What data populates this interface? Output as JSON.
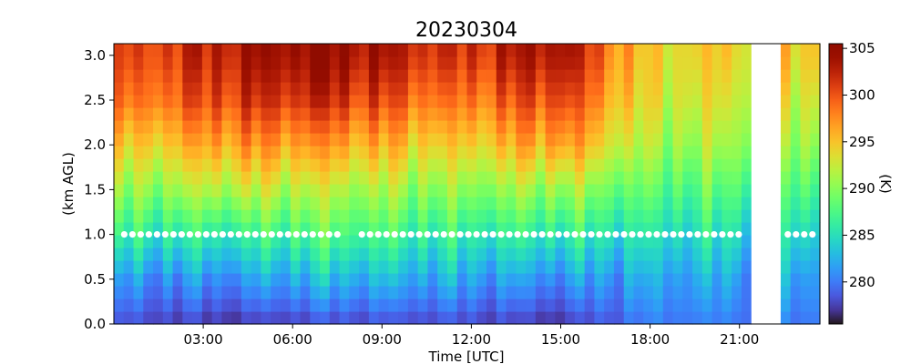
{
  "chart_data": {
    "type": "heatmap",
    "title": "20230304",
    "xlabel": "Time [UTC]",
    "ylabel": "(km AGL)",
    "colorbar_label": "(K)",
    "x_ticks": [
      "03:00",
      "06:00",
      "09:00",
      "12:00",
      "15:00",
      "18:00",
      "21:00"
    ],
    "x_tick_hours": [
      3,
      6,
      9,
      12,
      15,
      18,
      21
    ],
    "xlim_hours": [
      0,
      23.7
    ],
    "y_ticks": [
      "0.0",
      "0.5",
      "1.0",
      "1.5",
      "2.0",
      "2.5",
      "3.0"
    ],
    "y_tick_values": [
      0,
      0.5,
      1.0,
      1.5,
      2.0,
      2.5,
      3.0
    ],
    "ylim_km": [
      0,
      3.13
    ],
    "colorbar_ticks": [
      "280",
      "285",
      "290",
      "295",
      "300",
      "305"
    ],
    "colorbar_tick_values": [
      280,
      285,
      290,
      295,
      300,
      305
    ],
    "color_range_K": [
      275.5,
      305.5
    ],
    "colormap": "turbo",
    "marker_height_km": 1.0,
    "marker_color": "#ffffff",
    "data_gap_hours": [
      21.4,
      22.3
    ],
    "temperature_profile_K": {
      "heights_km": [
        0.0,
        0.5,
        1.0,
        1.5,
        2.0,
        2.5,
        3.0
      ],
      "rows": [
        {
          "x_hours": 0.5,
          "values": [
            278,
            281,
            286,
            290,
            294,
            298,
            300
          ]
        },
        {
          "x_hours": 4.0,
          "values": [
            277,
            281,
            286,
            292,
            297,
            301,
            303
          ]
        },
        {
          "x_hours": 7.0,
          "values": [
            278,
            283,
            288,
            292,
            297,
            302,
            305
          ]
        },
        {
          "x_hours": 11.5,
          "values": [
            278,
            282,
            286,
            290,
            294,
            298,
            301
          ]
        },
        {
          "x_hours": 15.0,
          "values": [
            277,
            281,
            286,
            291,
            297,
            301,
            304
          ]
        },
        {
          "x_hours": 18.0,
          "values": [
            280,
            282,
            285,
            288,
            291,
            293,
            294
          ]
        },
        {
          "x_hours": 23.3,
          "values": [
            280,
            282,
            285,
            288,
            291,
            293,
            295
          ]
        }
      ]
    }
  }
}
